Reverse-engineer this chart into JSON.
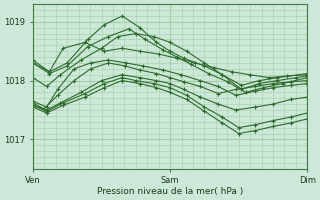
{
  "xlabel": "Pression niveau de la mer( hPa )",
  "bg_color": "#cce8d8",
  "line_color": "#2d6b2d",
  "grid_color": "#a8cca8",
  "ylim": [
    1016.5,
    1019.3
  ],
  "yticks": [
    1017,
    1018,
    1019
  ],
  "xtick_labels": [
    "Ven",
    "Sam",
    "Dim"
  ],
  "xtick_positions": [
    0.0,
    1.0,
    2.0
  ],
  "lines": [
    {
      "x": [
        0.0,
        0.12,
        0.22,
        0.38,
        0.52,
        0.65,
        0.78,
        0.92,
        1.05,
        1.18,
        1.32,
        1.45,
        1.58,
        1.72,
        1.85,
        2.0
      ],
      "y": [
        1018.3,
        1018.15,
        1018.55,
        1018.65,
        1018.5,
        1018.55,
        1018.5,
        1018.45,
        1018.38,
        1018.3,
        1018.22,
        1018.15,
        1018.1,
        1018.05,
        1018.08,
        1018.1
      ]
    },
    {
      "x": [
        0.0,
        0.1,
        0.2,
        0.35,
        0.5,
        0.62,
        0.75,
        0.88,
        1.0,
        1.12,
        1.25,
        1.38,
        1.52,
        1.65,
        1.78,
        1.92,
        2.0
      ],
      "y": [
        1018.05,
        1017.9,
        1018.1,
        1018.35,
        1018.55,
        1018.75,
        1018.8,
        1018.75,
        1018.65,
        1018.5,
        1018.3,
        1018.1,
        1017.85,
        1017.95,
        1018.0,
        1018.05,
        1018.08
      ]
    },
    {
      "x": [
        0.0,
        0.1,
        0.18,
        0.3,
        0.42,
        0.55,
        0.68,
        0.8,
        0.95,
        1.08,
        1.22,
        1.35,
        1.48,
        1.62,
        1.75,
        1.88,
        2.0
      ],
      "y": [
        1017.65,
        1017.55,
        1017.85,
        1018.2,
        1018.3,
        1018.35,
        1018.3,
        1018.25,
        1018.18,
        1018.1,
        1018.0,
        1017.9,
        1017.75,
        1017.82,
        1017.88,
        1017.92,
        1017.95
      ]
    },
    {
      "x": [
        0.0,
        0.08,
        0.18,
        0.3,
        0.42,
        0.55,
        0.67,
        0.78,
        0.9,
        1.0,
        1.1,
        1.22,
        1.35,
        1.48,
        1.62,
        1.75,
        1.88,
        2.0
      ],
      "y": [
        1017.62,
        1017.52,
        1017.75,
        1018.0,
        1018.2,
        1018.3,
        1018.25,
        1018.18,
        1018.12,
        1018.05,
        1017.98,
        1017.9,
        1017.78,
        1017.85,
        1017.9,
        1017.95,
        1017.98,
        1018.0
      ]
    },
    {
      "x": [
        0.0,
        0.1,
        0.2,
        0.35,
        0.5,
        0.65,
        0.78,
        0.9,
        1.0,
        1.1,
        1.22,
        1.35,
        1.48,
        1.62,
        1.75,
        1.88,
        2.0
      ],
      "y": [
        1017.58,
        1017.5,
        1017.62,
        1017.8,
        1018.0,
        1018.1,
        1018.05,
        1018.0,
        1017.95,
        1017.85,
        1017.72,
        1017.6,
        1017.5,
        1017.55,
        1017.6,
        1017.68,
        1017.72
      ]
    },
    {
      "x": [
        0.0,
        0.12,
        0.25,
        0.4,
        0.52,
        0.65,
        0.78,
        0.9,
        1.0,
        1.1,
        1.25,
        1.38,
        1.52,
        1.65,
        1.78,
        2.0
      ],
      "y": [
        1018.35,
        1018.15,
        1018.3,
        1018.7,
        1018.95,
        1019.1,
        1018.9,
        1018.65,
        1018.5,
        1018.38,
        1018.25,
        1018.1,
        1017.92,
        1018.0,
        1018.05,
        1018.12
      ]
    },
    {
      "x": [
        0.0,
        0.1,
        0.22,
        0.38,
        0.52,
        0.65,
        0.75,
        0.88,
        1.0,
        1.12,
        1.25,
        1.38,
        1.5,
        1.62,
        1.75,
        1.88,
        2.0
      ],
      "y": [
        1017.58,
        1017.48,
        1017.62,
        1017.78,
        1017.95,
        1018.05,
        1018.0,
        1017.95,
        1017.88,
        1017.75,
        1017.55,
        1017.38,
        1017.2,
        1017.25,
        1017.32,
        1017.38,
        1017.45
      ]
    },
    {
      "x": [
        0.0,
        0.1,
        0.22,
        0.38,
        0.52,
        0.65,
        0.78,
        0.9,
        1.0,
        1.12,
        1.25,
        1.38,
        1.5,
        1.62,
        1.75,
        1.88,
        2.0
      ],
      "y": [
        1017.55,
        1017.45,
        1017.58,
        1017.72,
        1017.88,
        1018.0,
        1017.95,
        1017.88,
        1017.8,
        1017.68,
        1017.48,
        1017.28,
        1017.1,
        1017.15,
        1017.22,
        1017.28,
        1017.35
      ]
    },
    {
      "x": [
        0.0,
        0.12,
        0.25,
        0.4,
        0.55,
        0.7,
        0.82,
        0.95,
        1.05,
        1.15,
        1.28,
        1.42,
        1.55,
        1.68,
        1.82,
        2.0
      ],
      "y": [
        1018.3,
        1018.12,
        1018.25,
        1018.58,
        1018.75,
        1018.88,
        1018.7,
        1018.52,
        1018.4,
        1018.28,
        1018.12,
        1017.98,
        1017.8,
        1017.88,
        1017.95,
        1018.05
      ]
    }
  ]
}
